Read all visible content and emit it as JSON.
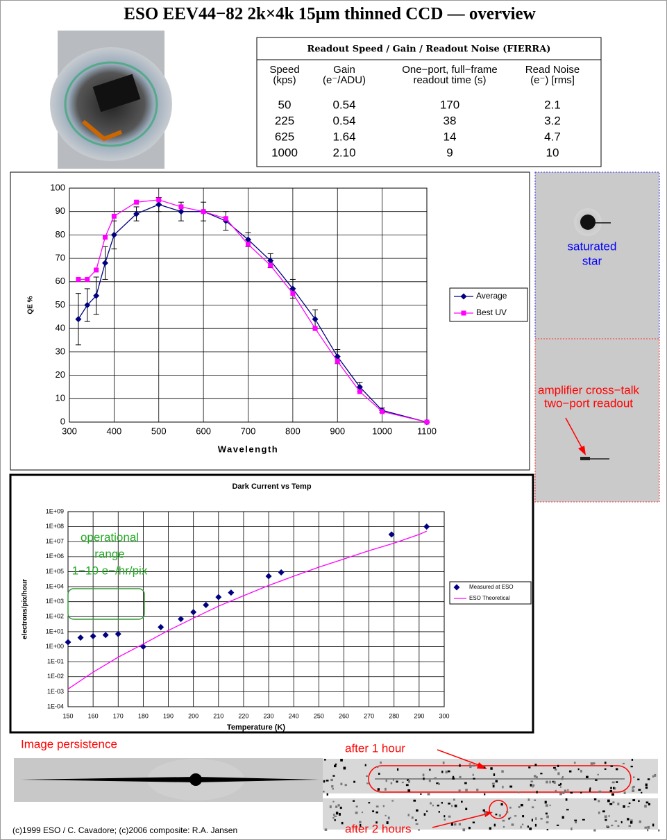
{
  "title": "ESO EEV44−82 2k×4k  15μm thinned CCD –– overview",
  "table": {
    "title": "Readout Speed / Gain / Readout Noise (FIERRA)",
    "headers": [
      [
        "Speed",
        "(kps)"
      ],
      [
        "Gain",
        "(e⁻/ADU)"
      ],
      [
        "One−port, full−frame",
        "readout time (s)"
      ],
      [
        "Read Noise",
        "(e⁻) [rms]"
      ]
    ],
    "rows": [
      [
        "50",
        "0.54",
        "170",
        "2.1"
      ],
      [
        "225",
        "0.54",
        "38",
        "3.2"
      ],
      [
        "625",
        "1.64",
        "14",
        "4.7"
      ],
      [
        "1000",
        "2.10",
        "9",
        "10"
      ]
    ]
  },
  "chart_data": [
    {
      "type": "line",
      "xlabel": "Wavelength",
      "ylabel": "QE %",
      "x": [
        320,
        340,
        360,
        380,
        400,
        450,
        500,
        550,
        600,
        650,
        700,
        750,
        800,
        850,
        900,
        950,
        1000,
        1100
      ],
      "xlim": [
        300,
        1100
      ],
      "xticks": [
        300,
        400,
        500,
        600,
        700,
        800,
        900,
        1000,
        1100
      ],
      "ylim": [
        0,
        100
      ],
      "yticks": [
        0,
        10,
        20,
        30,
        40,
        50,
        60,
        70,
        80,
        90,
        100
      ],
      "grid": true,
      "legend": "right",
      "series": [
        {
          "name": "Average",
          "color": "#000080",
          "marker": "diamond",
          "values": [
            44,
            50,
            54,
            68,
            80,
            89,
            93,
            90,
            90,
            86,
            78,
            69,
            57,
            44,
            28,
            15,
            5,
            0
          ],
          "errors": [
            11,
            7,
            8,
            7,
            6,
            3,
            3,
            4,
            4,
            4,
            3,
            3,
            4,
            4,
            3,
            2,
            1,
            0
          ]
        },
        {
          "name": "Best UV",
          "color": "#ff00ff",
          "marker": "square",
          "values": [
            61,
            61,
            65,
            79,
            88,
            94,
            95,
            92,
            90,
            87,
            76,
            67,
            55,
            40,
            26,
            13,
            4.5,
            0
          ]
        }
      ]
    },
    {
      "type": "scatter",
      "title": "Dark Current vs Temp",
      "xlabel": "Temperature (K)",
      "ylabel": "electrons/pix/hour",
      "xlim": [
        150,
        300
      ],
      "xticks": [
        150,
        160,
        170,
        180,
        190,
        200,
        210,
        220,
        230,
        240,
        250,
        260,
        270,
        280,
        290,
        300
      ],
      "ylim": [
        0.0001,
        1000000000
      ],
      "yscale": "log",
      "yticks": [
        {
          "value": 0.0001,
          "label": "1E-04"
        },
        {
          "value": 0.001,
          "label": "1E-03"
        },
        {
          "value": 0.01,
          "label": "1E-02"
        },
        {
          "value": 0.1,
          "label": "1E-01"
        },
        {
          "value": 1,
          "label": "1E+00"
        },
        {
          "value": 10,
          "label": "1E+01"
        },
        {
          "value": 100,
          "label": "1E+02"
        },
        {
          "value": 1000,
          "label": "1E+03"
        },
        {
          "value": 10000,
          "label": "1E+04"
        },
        {
          "value": 100000,
          "label": "1E+05"
        },
        {
          "value": 1000000,
          "label": "1E+06"
        },
        {
          "value": 10000000,
          "label": "1E+07"
        },
        {
          "value": 100000000,
          "label": "1E+08"
        },
        {
          "value": 1000000000,
          "label": "1E+09"
        }
      ],
      "grid": true,
      "legend": "right",
      "series": [
        {
          "name": "Measured at ESO",
          "color": "#000080",
          "marker": "diamond",
          "type": "scatter",
          "x": [
            150,
            155,
            160,
            165,
            170,
            180,
            187,
            195,
            200,
            205,
            210,
            215,
            230,
            235,
            279,
            293
          ],
          "values": [
            2,
            4,
            5,
            6,
            7,
            1,
            20,
            70,
            200,
            600,
            2000,
            4000,
            50000,
            90000,
            30000000,
            100000000
          ]
        },
        {
          "name": "ESO Theoretical",
          "color": "#ff00ff",
          "type": "line",
          "x": [
            150,
            160,
            170,
            180,
            190,
            200,
            210,
            220,
            230,
            240,
            250,
            260,
            270,
            280,
            290,
            293
          ],
          "values": [
            0.0015,
            0.02,
            0.2,
            1.5,
            12,
            80,
            500,
            2500,
            12000,
            50000,
            200000,
            700000,
            2500000,
            8000000,
            30000000,
            50000000
          ]
        }
      ],
      "annotation": [
        "operational",
        "range",
        "1−10 e−/hr/pix"
      ]
    }
  ],
  "annotations": {
    "saturated_star": [
      "saturated",
      "star"
    ],
    "cross_talk": [
      "amplifier cross−talk",
      "two−port readout"
    ],
    "persistence": "Image persistence",
    "after_1_hour": "after 1 hour",
    "after_2_hours": "after 2 hours"
  },
  "footer": "(c)1999 ESO / C. Cavadore;  (c)2006 composite: R.A. Jansen"
}
